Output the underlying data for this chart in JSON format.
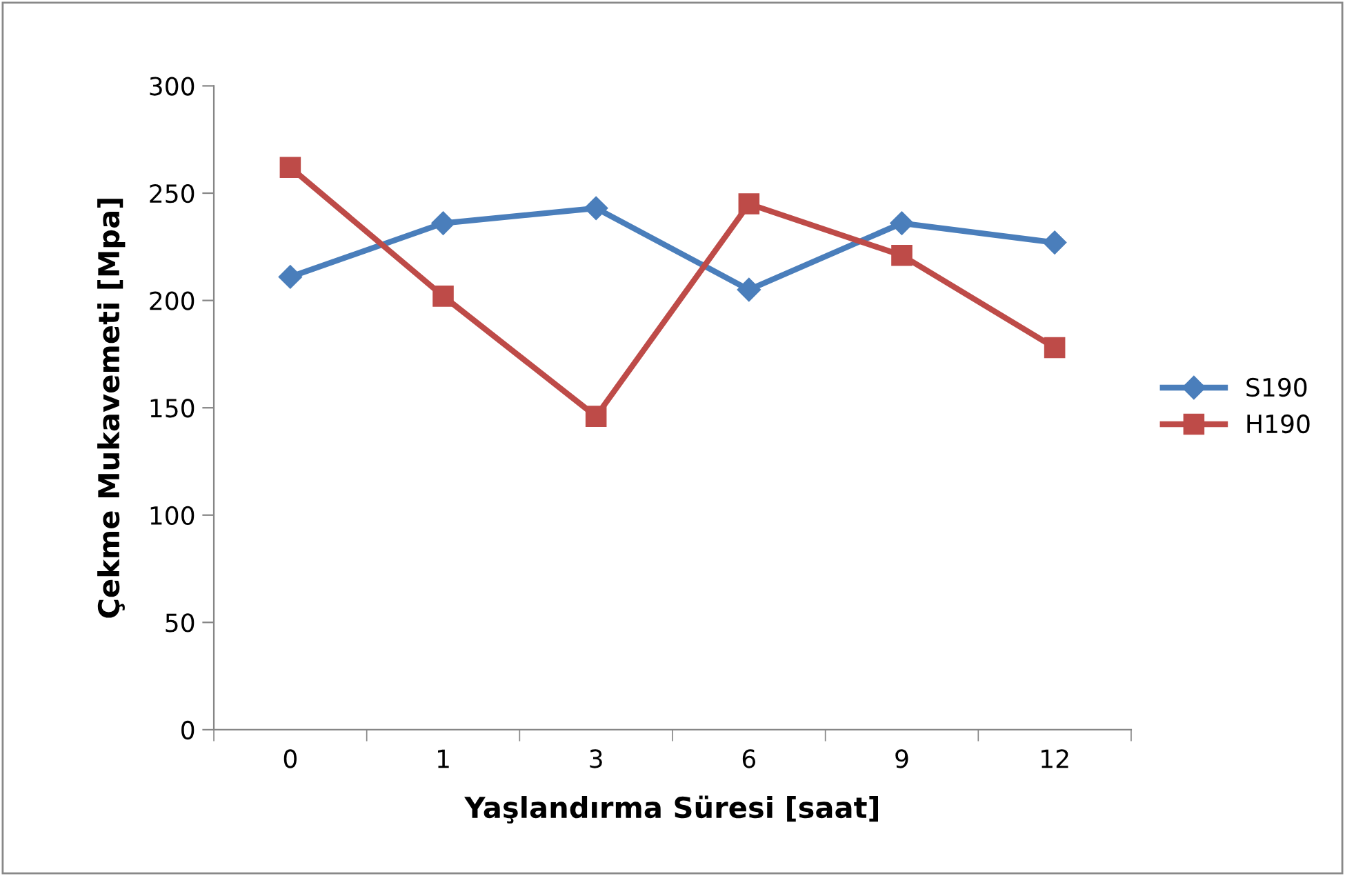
{
  "chart_data": {
    "type": "line",
    "xlabel": "Yaşlandırma Süresi [saat]",
    "ylabel": "Çekme Mukavemeti [Mpa]",
    "categories": [
      "0",
      "1",
      "3",
      "6",
      "9",
      "12"
    ],
    "series": [
      {
        "name": "S190",
        "color": "#4a7ebb",
        "marker": "diamond",
        "values": [
          211,
          236,
          243,
          205,
          236,
          227
        ]
      },
      {
        "name": "H190",
        "color": "#be4b48",
        "marker": "square",
        "values": [
          262,
          202,
          146,
          245,
          221,
          178
        ]
      }
    ],
    "ylim": [
      0,
      300
    ],
    "yticks": [
      0,
      50,
      100,
      150,
      200,
      250,
      300
    ],
    "grid": false,
    "legend": "right",
    "line_style": "solid"
  }
}
